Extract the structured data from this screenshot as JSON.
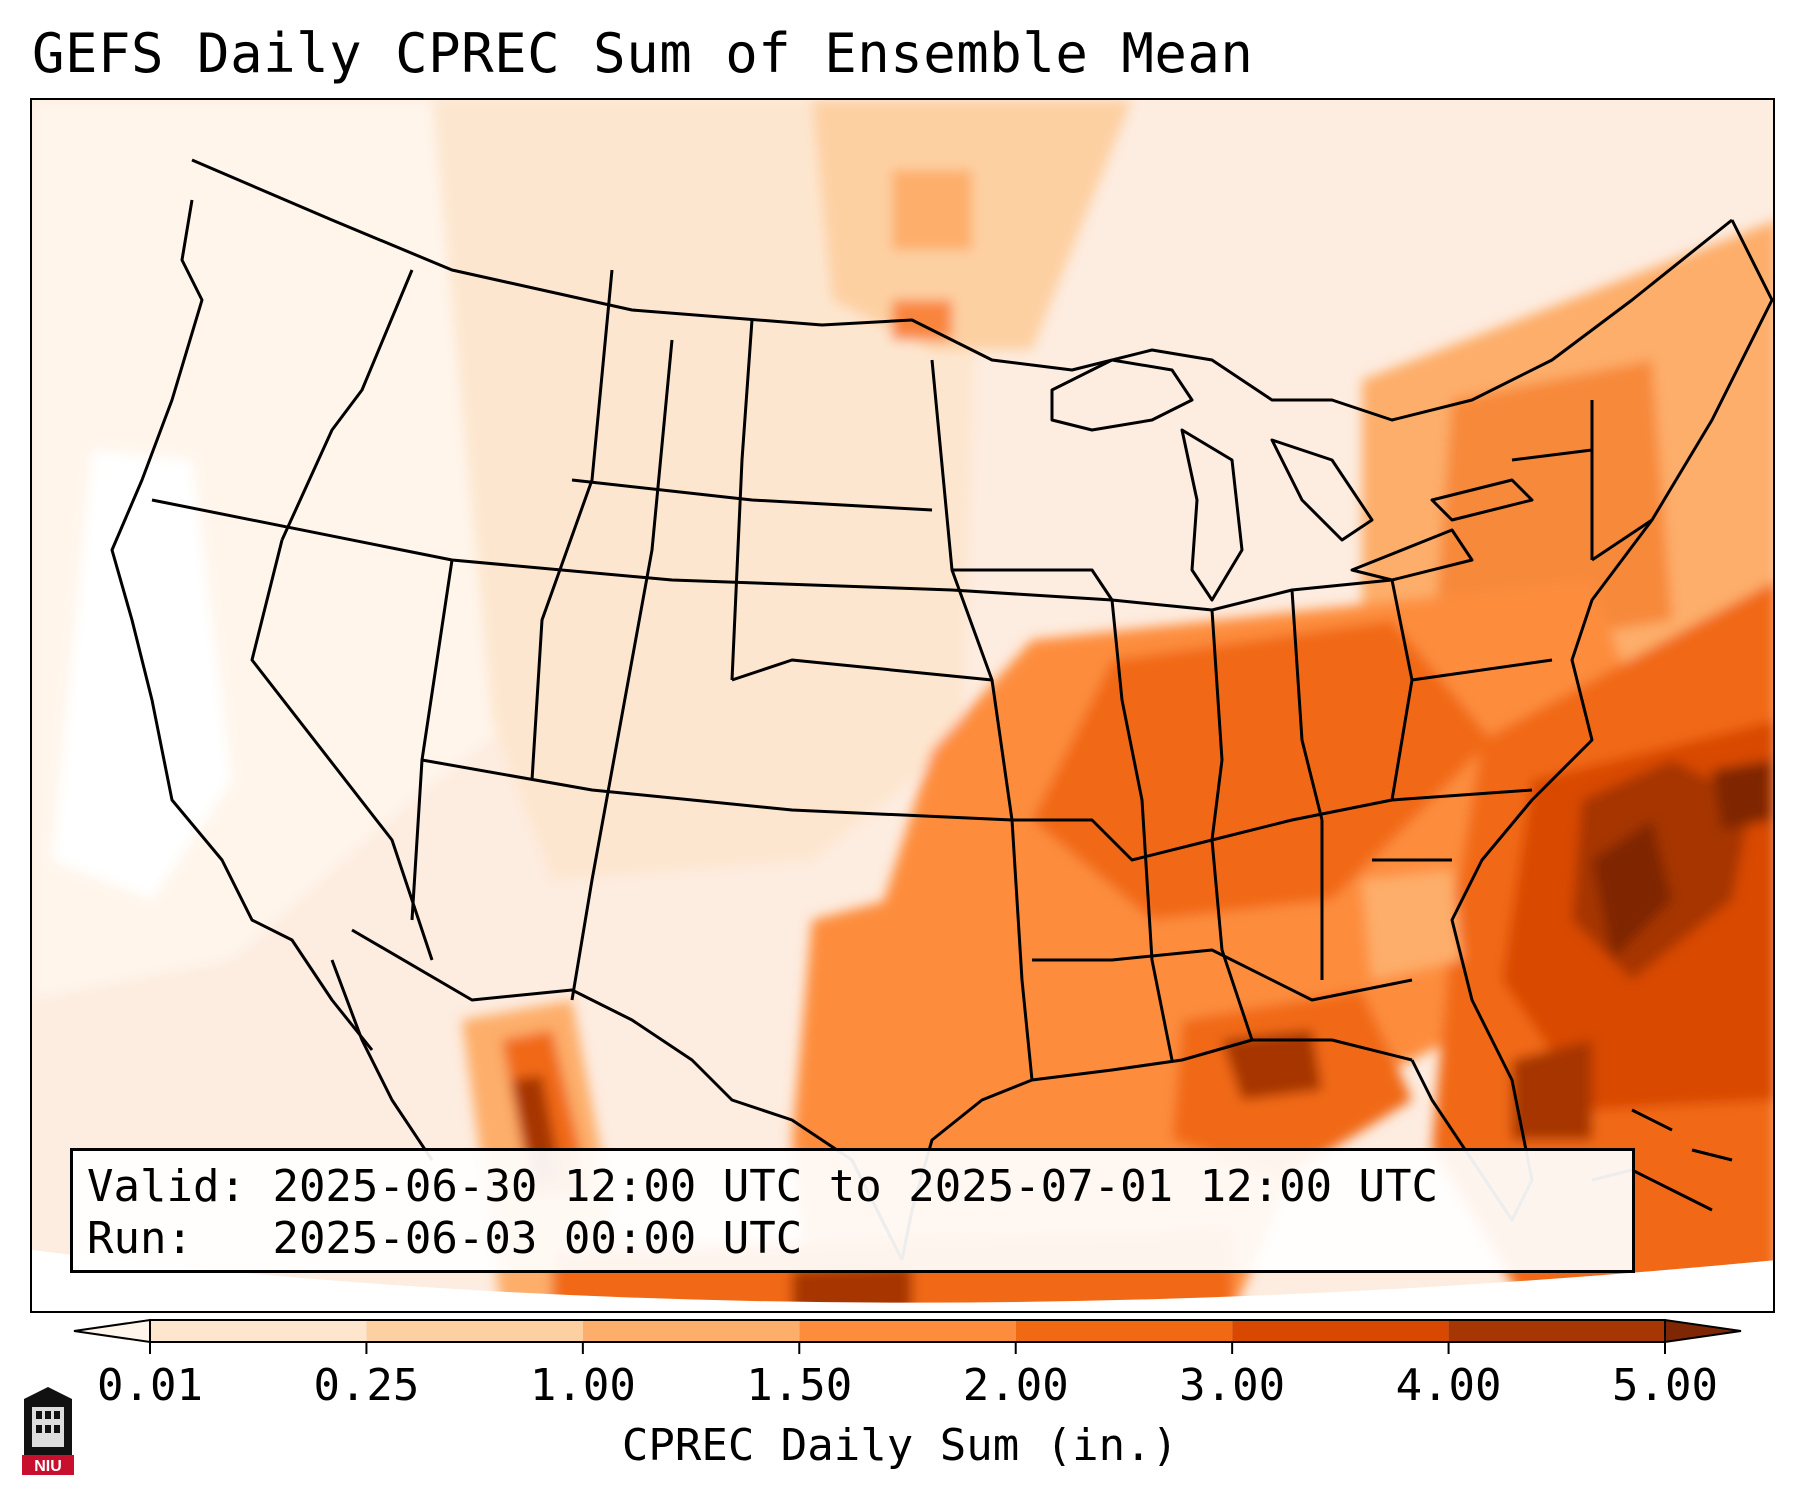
{
  "title": "GEFS Daily CPREC Sum of Ensemble Mean",
  "info": {
    "valid_label": "Valid:",
    "valid_value": "2025-06-30 12:00 UTC to 2025-07-01 12:00 UTC",
    "run_label": "Run:",
    "run_value": "2025-06-03 00:00 UTC"
  },
  "colorbar": {
    "label": "CPREC Daily Sum (in.)",
    "ticks": [
      "0.01",
      "0.25",
      "1.00",
      "1.50",
      "2.00",
      "3.00",
      "4.00",
      "5.00"
    ],
    "colors": [
      "#fff5eb",
      "#fee6ce",
      "#fdd0a2",
      "#fdae6b",
      "#fd8d3c",
      "#f16913",
      "#d94801",
      "#a63603",
      "#7f2704"
    ],
    "extend": "both"
  },
  "map": {
    "region": "Contiguous United States",
    "projection": "Lambert Conformal",
    "heaviest_rain_area": "Southeast US coast and western Atlantic"
  },
  "logo": {
    "text": "NIU",
    "icon": "niu-logo-icon"
  }
}
